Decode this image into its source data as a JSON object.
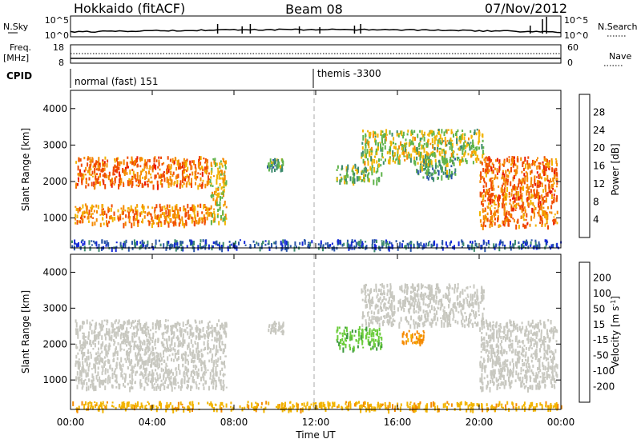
{
  "header": {
    "station": "Hokkaido (fitACF)",
    "beam": "Beam 08",
    "date": "07/Nov/2012"
  },
  "strip_labels": {
    "nsky": "N.Sky",
    "nsearch": "N.Search",
    "freq": "Freq.",
    "freq_unit": "[MHz]",
    "nave": "Nave",
    "cpid": "CPID",
    "nsky_ticks": [
      "10^5",
      "10^0"
    ],
    "nsearch_ticks": [
      "10^5",
      "10^0"
    ],
    "freq_ticks": [
      "18",
      "8"
    ],
    "nave_ticks": [
      "60",
      "0"
    ]
  },
  "cpid": {
    "left": "normal (fast) 151",
    "right": "themis -3300"
  },
  "panels": {
    "ylabel": "Slant Range [km]",
    "yticks": [
      "1000",
      "2000",
      "3000",
      "4000"
    ],
    "xticks": [
      "00:00",
      "04:00",
      "08:00",
      "12:00",
      "16:00",
      "20:00",
      "00:00"
    ],
    "xlabel": "Time UT"
  },
  "colorbars": {
    "power": {
      "label": "Power [dB]",
      "ticks": [
        "4",
        "8",
        "12",
        "16",
        "20",
        "24",
        "28"
      ],
      "colors": [
        "#1428d8",
        "#2a55a8",
        "#3c8a6e",
        "#5fb34a",
        "#f2b400",
        "#f58a00",
        "#f04b00",
        "#e81800"
      ]
    },
    "velocity": {
      "label": "Velocity [m s-1]",
      "ticks": [
        "200",
        "100",
        "50",
        "15",
        "-15",
        "-50",
        "-100",
        "-200"
      ],
      "colors": [
        "#1e3ca0",
        "#2a7070",
        "#3d9a3d",
        "#6acc3a",
        "#c8c8c0",
        "#f2b400",
        "#f58a00",
        "#f04b00",
        "#e81800"
      ]
    }
  },
  "chart_data": {
    "type": "heatmap",
    "x_unit": "hours UT",
    "xlim": [
      0,
      24
    ],
    "y_unit": "km",
    "ylim": [
      180,
      4500
    ],
    "power_regions": [
      {
        "t0": 0.2,
        "t1": 6.8,
        "r0": 850,
        "r1": 1400,
        "db": 24
      },
      {
        "t0": 0.2,
        "t1": 6.8,
        "r0": 1900,
        "r1": 2700,
        "db": 26
      },
      {
        "t0": 6.8,
        "t1": 7.6,
        "r0": 900,
        "r1": 2650,
        "db": 20
      },
      {
        "t0": 9.6,
        "t1": 10.4,
        "r0": 2350,
        "r1": 2650,
        "db": 14
      },
      {
        "t0": 13.0,
        "t1": 15.2,
        "r0": 2000,
        "r1": 2500,
        "db": 16
      },
      {
        "t0": 14.2,
        "t1": 20.2,
        "r0": 2550,
        "r1": 3450,
        "db": 18
      },
      {
        "t0": 16.8,
        "t1": 18.8,
        "r0": 2100,
        "r1": 2700,
        "db": 14
      },
      {
        "t0": 20.0,
        "t1": 23.8,
        "r0": 800,
        "r1": 2700,
        "db": 26
      },
      {
        "t0": 0.0,
        "t1": 24.0,
        "r0": 200,
        "r1": 420,
        "db": 8
      }
    ],
    "velocity_regions": [
      {
        "t0": 0.2,
        "t1": 7.6,
        "r0": 800,
        "r1": 2700,
        "v": 0
      },
      {
        "t0": 9.6,
        "t1": 10.4,
        "r0": 2350,
        "r1": 2650,
        "v": 0
      },
      {
        "t0": 13.0,
        "t1": 15.2,
        "r0": 1900,
        "r1": 2500,
        "v": 40
      },
      {
        "t0": 14.2,
        "t1": 20.2,
        "r0": 2550,
        "r1": 3700,
        "v": 0
      },
      {
        "t0": 16.2,
        "t1": 17.3,
        "r0": 2050,
        "r1": 2400,
        "v": -60
      },
      {
        "t0": 20.0,
        "t1": 23.8,
        "r0": 800,
        "r1": 2700,
        "v": 0
      },
      {
        "t0": 0.0,
        "t1": 24.0,
        "r0": 200,
        "r1": 420,
        "v": -40
      }
    ]
  }
}
